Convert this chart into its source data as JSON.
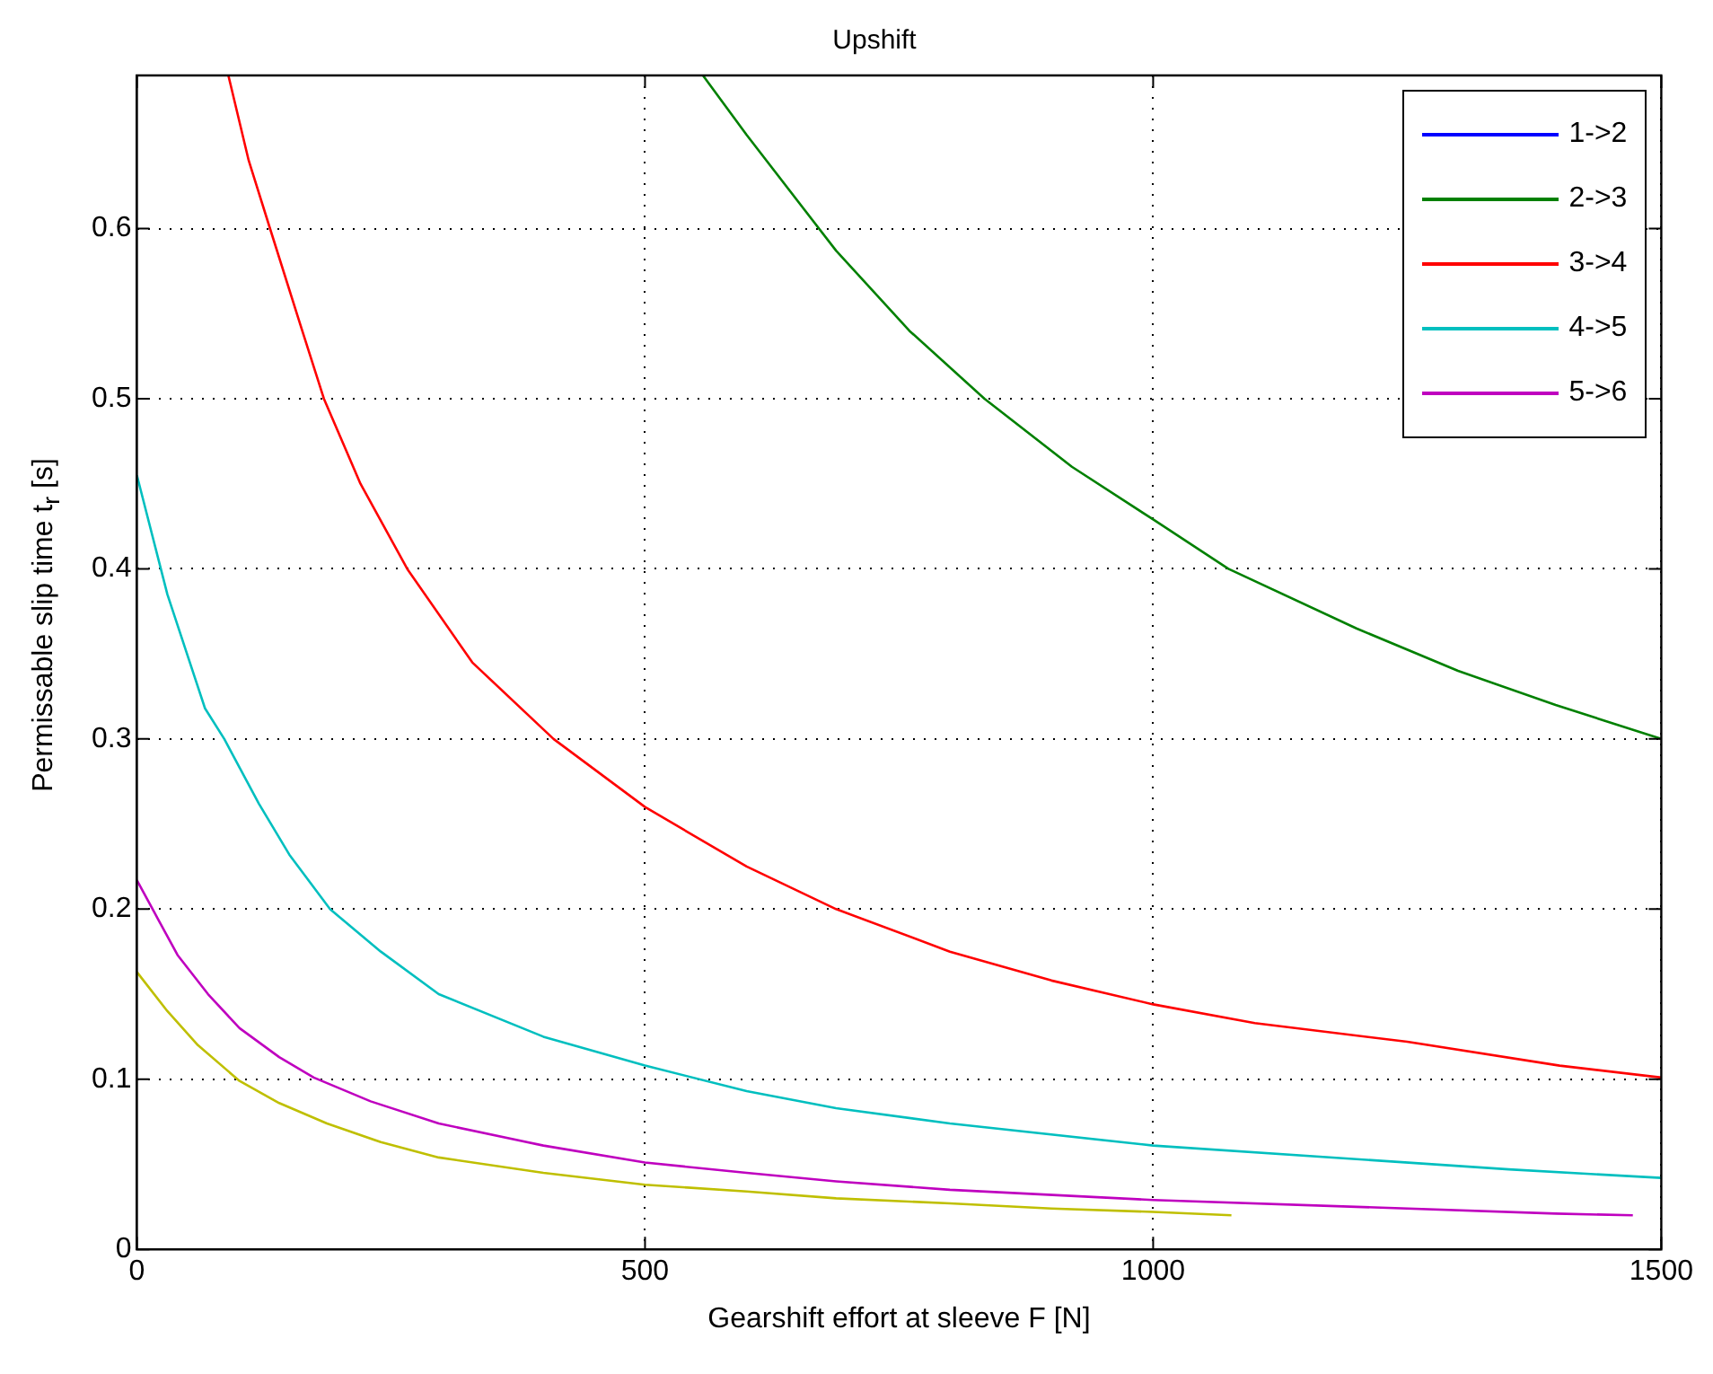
{
  "chart_data": {
    "type": "line",
    "title": "Upshift",
    "xlabel": "Gearshift effort at sleeve F [N]",
    "ylabel": "Permissable slip time t$_{r}$ [s]",
    "xlim": [
      0,
      1500
    ],
    "ylim": [
      0,
      0.69
    ],
    "xticks": [
      0,
      500,
      1000,
      1500
    ],
    "yticks": [
      0,
      0.1,
      0.2,
      0.3,
      0.4,
      0.5,
      0.6
    ],
    "grid": true,
    "legend": "top right",
    "line_style": "solid",
    "marker": "none",
    "series": [
      {
        "name": "1->2",
        "color": "#0000ff"
      },
      {
        "name": "2->3",
        "color": "#008000",
        "x": [
          557,
          600,
          688,
          760,
          834,
          920,
          1000,
          1074,
          1200,
          1300,
          1396,
          1500
        ],
        "values": [
          0.69,
          0.655,
          0.587,
          0.54,
          0.5,
          0.46,
          0.429,
          0.4,
          0.365,
          0.34,
          0.32,
          0.3
        ]
      },
      {
        "name": "3->4",
        "color": "#ff0000",
        "x": [
          90,
          110,
          131,
          160,
          184,
          220,
          266,
          330,
          410,
          500,
          600,
          688,
          800,
          900,
          1000,
          1100,
          1250,
          1400,
          1500
        ],
        "values": [
          0.69,
          0.64,
          0.6,
          0.545,
          0.5,
          0.45,
          0.4,
          0.345,
          0.3,
          0.26,
          0.225,
          0.2,
          0.175,
          0.158,
          0.144,
          0.133,
          0.122,
          0.108,
          0.101
        ]
      },
      {
        "name": "4->5",
        "color": "#00bfbf",
        "x": [
          0,
          30,
          67,
          86,
          120,
          150,
          190,
          240,
          297,
          400,
          500,
          600,
          688,
          800,
          1000,
          1200,
          1350,
          1500
        ],
        "values": [
          0.455,
          0.385,
          0.318,
          0.3,
          0.262,
          0.232,
          0.2,
          0.175,
          0.15,
          0.125,
          0.108,
          0.093,
          0.083,
          0.074,
          0.061,
          0.053,
          0.047,
          0.042
        ]
      },
      {
        "name": "5->6",
        "color": "#bf00bf",
        "x": [
          0,
          20,
          40,
          70,
          101,
          140,
          174,
          230,
          297,
          400,
          500,
          600,
          688,
          800,
          1000,
          1200,
          1396,
          1472
        ],
        "values": [
          0.217,
          0.195,
          0.173,
          0.15,
          0.13,
          0.113,
          0.101,
          0.087,
          0.074,
          0.061,
          0.051,
          0.045,
          0.04,
          0.035,
          0.029,
          0.025,
          0.021,
          0.02
        ]
      },
      {
        "color": "#bfbf00",
        "x": [
          0,
          30,
          60,
          101,
          140,
          187,
          240,
          297,
          400,
          500,
          600,
          688,
          800,
          900,
          1000,
          1077
        ],
        "values": [
          0.163,
          0.14,
          0.12,
          0.099,
          0.086,
          0.074,
          0.063,
          0.054,
          0.045,
          0.038,
          0.034,
          0.03,
          0.027,
          0.024,
          0.022,
          0.02
        ]
      }
    ]
  }
}
